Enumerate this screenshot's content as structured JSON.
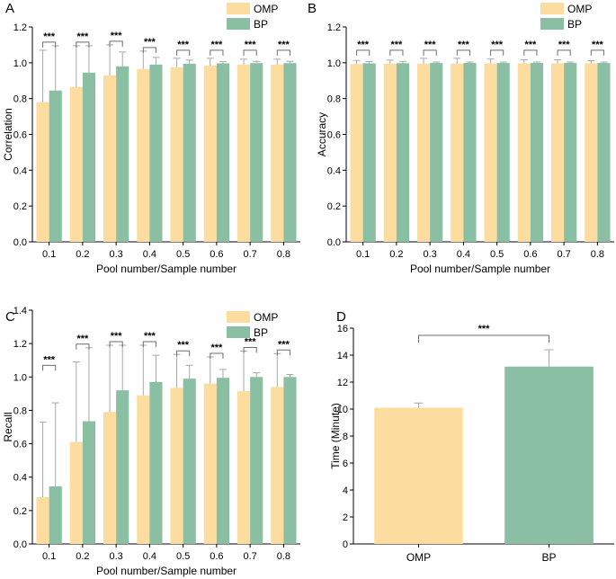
{
  "colors": {
    "omp": "#FDDD9F",
    "bp": "#8BBFA3"
  },
  "chart_data": [
    {
      "panel": "A",
      "type": "bar",
      "xlabel": "Pool number/Sample number",
      "ylabel": "Correlation",
      "ylim": [
        0,
        1.2
      ],
      "yticks": [
        "0.0",
        "0.2",
        "0.4",
        "0.6",
        "0.8",
        "1.0",
        "1.2"
      ],
      "categories": [
        "0.1",
        "0.2",
        "0.3",
        "0.4",
        "0.5",
        "0.6",
        "0.7",
        "0.8"
      ],
      "legend": {
        "position": "top-right",
        "entries": [
          "OMP",
          "BP"
        ]
      },
      "significance": "***",
      "series": [
        {
          "name": "OMP",
          "values": [
            0.78,
            0.865,
            0.93,
            0.965,
            0.975,
            0.985,
            0.99,
            0.99
          ],
          "errors": [
            0.29,
            0.23,
            0.17,
            0.1,
            0.05,
            0.04,
            0.03,
            0.03
          ]
        },
        {
          "name": "BP",
          "values": [
            0.845,
            0.945,
            0.98,
            0.99,
            0.995,
            0.997,
            0.998,
            0.998
          ],
          "errors": [
            0.25,
            0.15,
            0.08,
            0.04,
            0.02,
            0.01,
            0.01,
            0.01
          ]
        }
      ]
    },
    {
      "panel": "B",
      "type": "bar",
      "xlabel": "Pool number/Sample number",
      "ylabel": "Accuracy",
      "ylim": [
        0,
        1.2
      ],
      "yticks": [
        "0.0",
        "0.2",
        "0.4",
        "0.6",
        "0.8",
        "1.0",
        "1.2"
      ],
      "categories": [
        "0.1",
        "0.2",
        "0.3",
        "0.4",
        "0.5",
        "0.6",
        "0.7",
        "0.8"
      ],
      "legend": {
        "position": "top-right",
        "entries": [
          "OMP",
          "BP"
        ]
      },
      "significance": "***",
      "series": [
        {
          "name": "OMP",
          "values": [
            0.993,
            0.995,
            0.995,
            0.995,
            0.996,
            0.997,
            0.997,
            0.997
          ],
          "errors": [
            0.02,
            0.02,
            0.03,
            0.03,
            0.025,
            0.02,
            0.02,
            0.015
          ]
        },
        {
          "name": "BP",
          "values": [
            0.997,
            0.998,
            0.999,
            0.999,
            0.999,
            0.999,
            0.999,
            0.999
          ],
          "errors": [
            0.01,
            0.01,
            0.005,
            0.005,
            0.005,
            0.005,
            0.005,
            0.005
          ]
        }
      ]
    },
    {
      "panel": "C",
      "type": "bar",
      "xlabel": "Pool number/Sample number",
      "ylabel": "Recall",
      "ylim": [
        0,
        1.4
      ],
      "yticks": [
        "0.0",
        "0.2",
        "0.4",
        "0.6",
        "0.8",
        "1.0",
        "1.2",
        "1.4"
      ],
      "categories": [
        "0.1",
        "0.2",
        "0.3",
        "0.4",
        "0.5",
        "0.6",
        "0.7",
        "0.8"
      ],
      "legend": {
        "position": "top-right",
        "entries": [
          "OMP",
          "BP"
        ]
      },
      "significance": "***",
      "series": [
        {
          "name": "OMP",
          "values": [
            0.28,
            0.61,
            0.79,
            0.89,
            0.935,
            0.96,
            0.915,
            0.94
          ],
          "errors": [
            0.45,
            0.48,
            0.4,
            0.3,
            0.2,
            0.16,
            0.24,
            0.2
          ]
        },
        {
          "name": "BP",
          "values": [
            0.345,
            0.735,
            0.92,
            0.97,
            0.99,
            0.995,
            1.0,
            1.0
          ],
          "errors": [
            0.5,
            0.44,
            0.27,
            0.16,
            0.08,
            0.05,
            0.025,
            0.015
          ]
        }
      ]
    },
    {
      "panel": "D",
      "type": "bar",
      "xlabel": "",
      "ylabel": "Time (Minute)",
      "ylim": [
        0,
        16
      ],
      "yticks": [
        "0",
        "2",
        "4",
        "6",
        "8",
        "10",
        "12",
        "14",
        "16"
      ],
      "categories": [
        "OMP",
        "BP"
      ],
      "significance": "***",
      "values": [
        10.1,
        13.15
      ],
      "errors": [
        0.35,
        1.25
      ]
    }
  ]
}
